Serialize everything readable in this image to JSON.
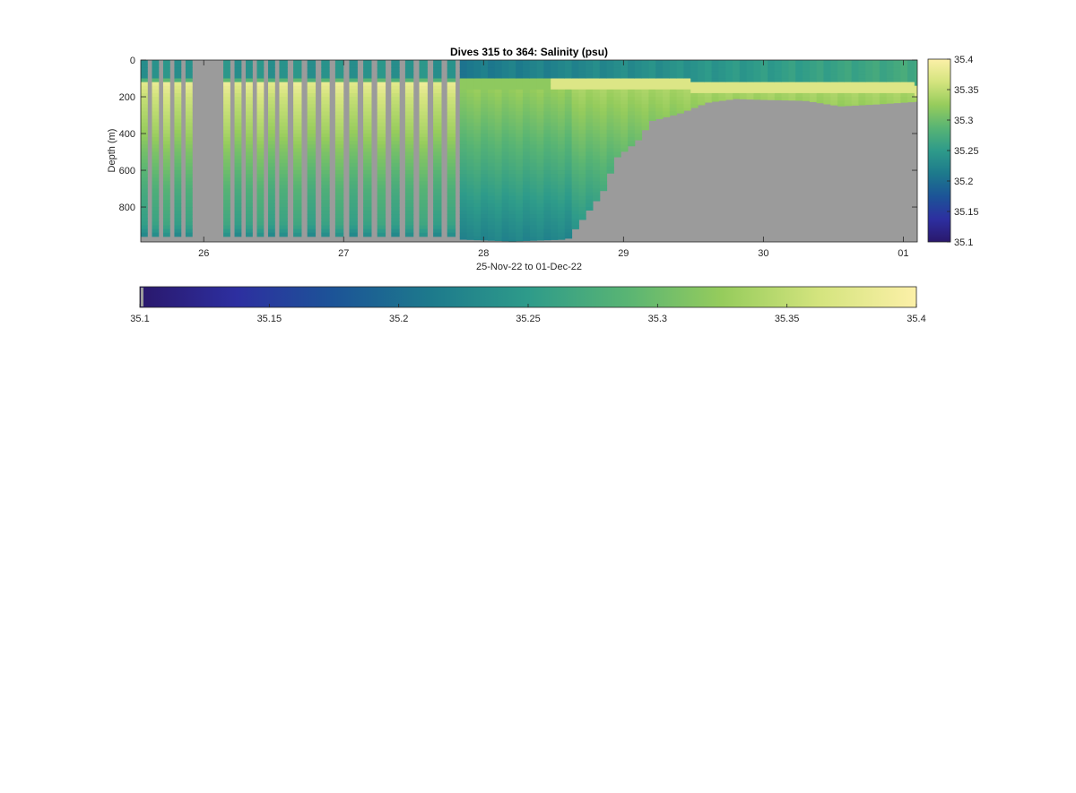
{
  "chart_data": [
    {
      "type": "heatmap",
      "title": "Dives 315 to 364: Salinity (psu)",
      "xlabel": "25-Nov-22 to 01-Dec-22",
      "ylabel": "Depth (m)",
      "x_ticks": [
        {
          "day": 26,
          "label": "26"
        },
        {
          "day": 27,
          "label": "27"
        },
        {
          "day": 28,
          "label": "28"
        },
        {
          "day": 29,
          "label": "29"
        },
        {
          "day": 30,
          "label": "30"
        },
        {
          "day": 31,
          "label": "01"
        }
      ],
      "xlim_day": [
        25.55,
        31.1
      ],
      "y_ticks": [
        {
          "value": 0,
          "label": "0"
        },
        {
          "value": 200,
          "label": "200"
        },
        {
          "value": 400,
          "label": "400"
        },
        {
          "value": 600,
          "label": "600"
        },
        {
          "value": 800,
          "label": "800"
        }
      ],
      "ylim": [
        0,
        990
      ],
      "y_reversed": true,
      "missing_color": "#9b9b9b",
      "depth_profile_early": {
        "depths": [
          0,
          100,
          130,
          200,
          400,
          500,
          700,
          900,
          960
        ],
        "salinity": [
          35.24,
          35.24,
          35.38,
          35.36,
          35.33,
          35.31,
          35.28,
          35.26,
          35.23
        ]
      },
      "dive_columns_early": [
        {
          "start": 25.55,
          "end": 25.6
        },
        {
          "start": 25.63,
          "end": 25.68
        },
        {
          "start": 25.71,
          "end": 25.76
        },
        {
          "start": 25.79,
          "end": 25.84
        },
        {
          "start": 25.87,
          "end": 25.92
        },
        {
          "start": 26.14,
          "end": 26.19
        },
        {
          "start": 26.22,
          "end": 26.27
        },
        {
          "start": 26.3,
          "end": 26.35
        },
        {
          "start": 26.38,
          "end": 26.43
        },
        {
          "start": 26.46,
          "end": 26.51
        },
        {
          "start": 26.54,
          "end": 26.6
        },
        {
          "start": 26.64,
          "end": 26.7
        },
        {
          "start": 26.74,
          "end": 26.8
        },
        {
          "start": 26.84,
          "end": 26.9
        },
        {
          "start": 26.94,
          "end": 27.0
        },
        {
          "start": 27.04,
          "end": 27.1
        },
        {
          "start": 27.14,
          "end": 27.2
        },
        {
          "start": 27.24,
          "end": 27.3
        },
        {
          "start": 27.34,
          "end": 27.4
        },
        {
          "start": 27.44,
          "end": 27.5
        },
        {
          "start": 27.54,
          "end": 27.6
        },
        {
          "start": 27.64,
          "end": 27.7
        },
        {
          "start": 27.74,
          "end": 27.8
        }
      ],
      "continuous_section": {
        "start_day": 27.83,
        "end_day": 31.1,
        "seafloor_depth": [
          {
            "day": 27.83,
            "depth": 975
          },
          {
            "day": 28.2,
            "depth": 985
          },
          {
            "day": 28.6,
            "depth": 975
          },
          {
            "day": 28.85,
            "depth": 720
          },
          {
            "day": 28.95,
            "depth": 530
          },
          {
            "day": 29.1,
            "depth": 440
          },
          {
            "day": 29.2,
            "depth": 330
          },
          {
            "day": 29.4,
            "depth": 290
          },
          {
            "day": 29.6,
            "depth": 230
          },
          {
            "day": 29.8,
            "depth": 210
          },
          {
            "day": 30.0,
            "depth": 215
          },
          {
            "day": 30.3,
            "depth": 220
          },
          {
            "day": 30.55,
            "depth": 250
          },
          {
            "day": 30.8,
            "depth": 240
          },
          {
            "day": 31.1,
            "depth": 225
          }
        ]
      }
    },
    {
      "type": "colorbar",
      "orientation": "vertical",
      "min": 35.1,
      "max": 35.4,
      "tick_labels": [
        "35.1",
        "35.15",
        "35.2",
        "35.25",
        "35.3",
        "35.35",
        "35.4"
      ]
    },
    {
      "type": "colorbar",
      "orientation": "horizontal",
      "min": 35.1,
      "max": 35.4,
      "tick_labels": [
        "35.1",
        "35.15",
        "35.2",
        "35.25",
        "35.3",
        "35.35",
        "35.4"
      ]
    }
  ],
  "colormap": [
    "#2a186c",
    "#2d2fa0",
    "#1c5497",
    "#1d7a8c",
    "#2e9b8a",
    "#58b474",
    "#96cc5c",
    "#d4e47e",
    "#fcf0a8"
  ]
}
